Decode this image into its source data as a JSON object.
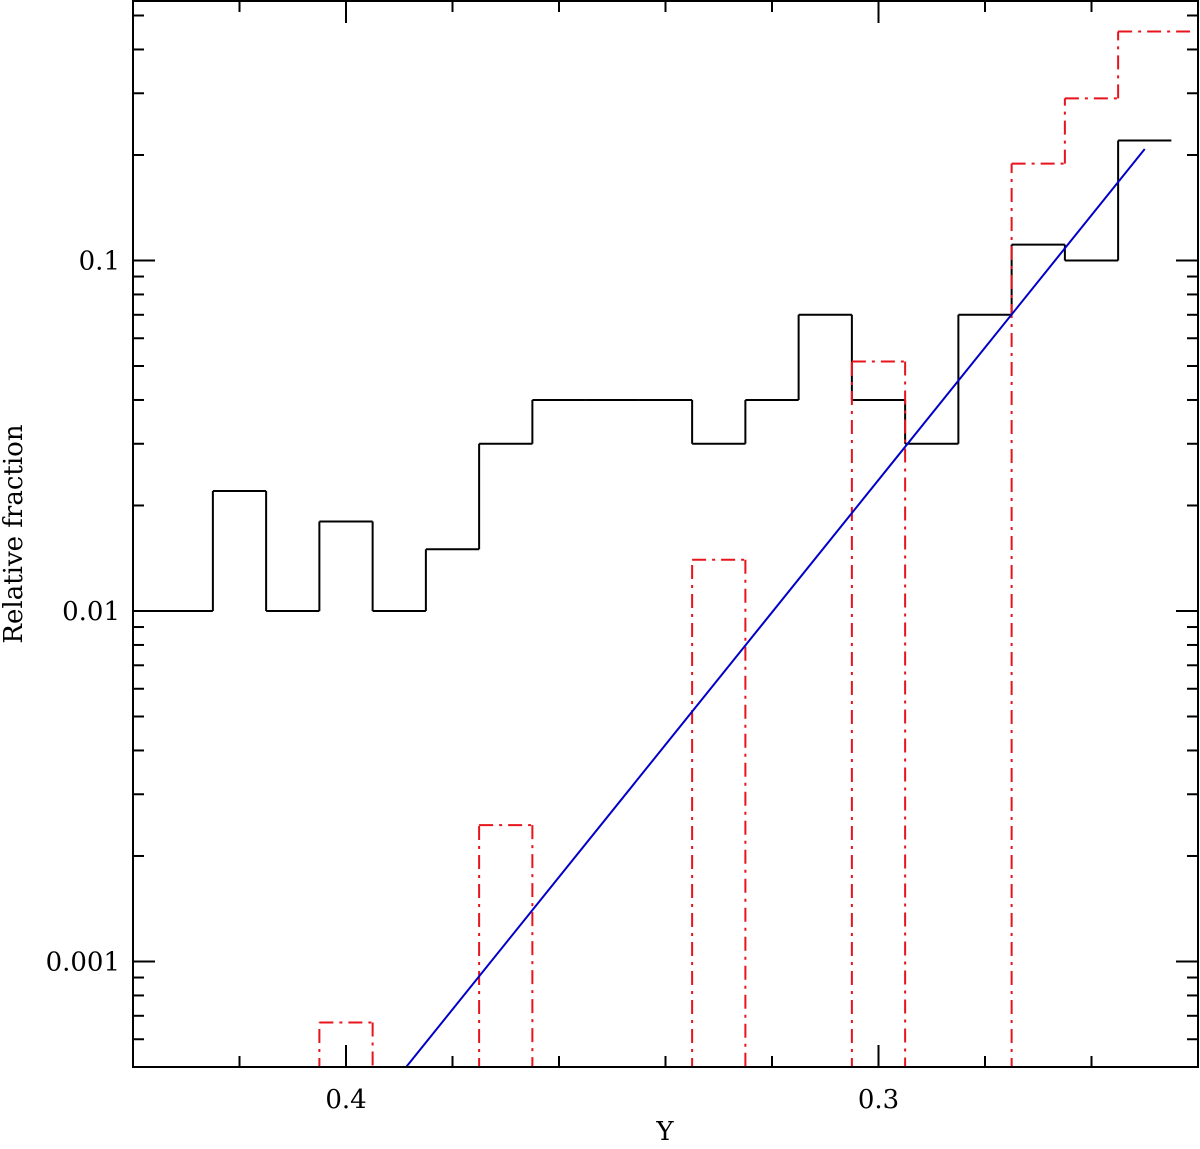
{
  "chart_data": {
    "type": "histogram",
    "x_label": "Y",
    "y_label": "Relative fraction",
    "xlim": [
      0.44,
      0.24
    ],
    "ylim": [
      0.0005,
      0.55
    ],
    "log_y": true,
    "xticks": [
      0.4,
      0.3
    ],
    "xminorticks": [
      0.42,
      0.38,
      0.36,
      0.34,
      0.32,
      0.28,
      0.26
    ],
    "yticks": [
      0.001,
      0.01,
      0.1
    ],
    "yminorticks": [
      0.0006,
      0.0007,
      0.0008,
      0.0009,
      0.002,
      0.003,
      0.004,
      0.005,
      0.006,
      0.007,
      0.008,
      0.009,
      0.02,
      0.03,
      0.04,
      0.05,
      0.06,
      0.07,
      0.08,
      0.09,
      0.2,
      0.3,
      0.4,
      0.5
    ],
    "series": [
      {
        "color": "#000000",
        "style": "solid",
        "bins": [
          0.44,
          0.425,
          0.415,
          0.405,
          0.395,
          0.385,
          0.375,
          0.365,
          0.355,
          0.345,
          0.335,
          0.325,
          0.315,
          0.305,
          0.295,
          0.285,
          0.275,
          0.265,
          0.255,
          0.245
        ],
        "values": [
          0.01,
          0.022,
          0.01,
          0.018,
          0.01,
          0.015,
          0.03,
          0.04,
          0.04,
          0.04,
          0.03,
          0.04,
          0.07,
          0.04,
          0.03,
          0.07,
          0.111,
          0.1,
          0.22
        ]
      },
      {
        "color": "#e8141b",
        "style": "dashdot",
        "bins": [
          0.405,
          0.395,
          0.385,
          0.375,
          0.365,
          0.355,
          0.345,
          0.335,
          0.325,
          0.315,
          0.305,
          0.295,
          0.285,
          0.275,
          0.265,
          0.255,
          0.2415
        ],
        "values": [
          0.00067,
          null,
          null,
          0.00245,
          null,
          null,
          null,
          0.014,
          null,
          null,
          0.0515,
          null,
          null,
          0.189,
          0.29,
          0.45
        ]
      }
    ],
    "fit_line": {
      "color": "#0000c8",
      "x": [
        0.3887,
        0.25
      ],
      "values": [
        0.0005,
        0.208
      ]
    }
  }
}
